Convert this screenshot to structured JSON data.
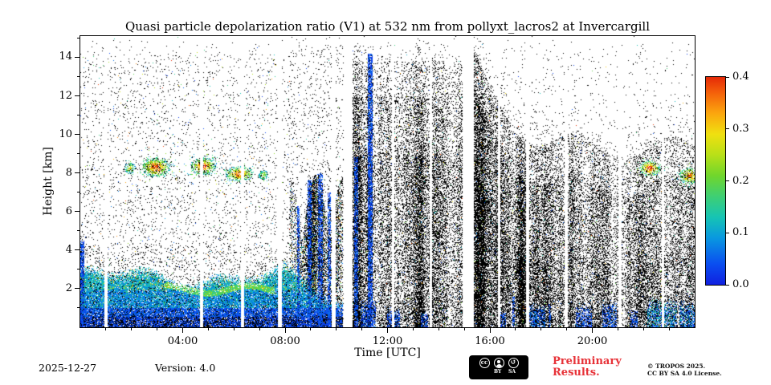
{
  "colors": {
    "background": "#ffffff",
    "axis": "#000000",
    "preliminary_red": "#e73137",
    "badge_bg": "#000000",
    "badge_fg": "#ffffff"
  },
  "chart_data": {
    "type": "heatmap",
    "title": "Quasi particle depolarization ratio (V1) at 532 nm from pollyxt_lacros2 at Invercargill",
    "xlabel": "Time [UTC]",
    "ylabel": "Height [km]",
    "value_field": "quasi particle depolarization ratio",
    "x_range_hours": [
      0,
      24
    ],
    "y_range_km": [
      0,
      15.1
    ],
    "x_major_ticks": [
      {
        "hour": 4,
        "label": "04:00"
      },
      {
        "hour": 8,
        "label": "08:00"
      },
      {
        "hour": 12,
        "label": "12:00"
      },
      {
        "hour": 16,
        "label": "16:00"
      },
      {
        "hour": 20,
        "label": "20:00"
      }
    ],
    "x_minor_tick_step_hours": 1,
    "y_major_ticks": [
      {
        "km": 2,
        "label": "2"
      },
      {
        "km": 4,
        "label": "4"
      },
      {
        "km": 6,
        "label": "6"
      },
      {
        "km": 8,
        "label": "8"
      },
      {
        "km": 10,
        "label": "10"
      },
      {
        "km": 12,
        "label": "12"
      },
      {
        "km": 14,
        "label": "14"
      }
    ],
    "y_minor_tick_step_km": 1,
    "colorbar": {
      "range": [
        0.0,
        0.4
      ],
      "ticks": [
        {
          "value": 0.0,
          "label": "0.0"
        },
        {
          "value": 0.1,
          "label": "0.1"
        },
        {
          "value": 0.2,
          "label": "0.2"
        },
        {
          "value": 0.3,
          "label": "0.3"
        },
        {
          "value": 0.4,
          "label": "0.4"
        }
      ],
      "colormap": "jet",
      "stops": [
        {
          "v": 0.0,
          "c": "#1020e0"
        },
        {
          "v": 0.04,
          "c": "#0a4ef0"
        },
        {
          "v": 0.09,
          "c": "#0998e0"
        },
        {
          "v": 0.13,
          "c": "#16c4b4"
        },
        {
          "v": 0.17,
          "c": "#3ecf74"
        },
        {
          "v": 0.21,
          "c": "#70d62c"
        },
        {
          "v": 0.25,
          "c": "#b8e018"
        },
        {
          "v": 0.29,
          "c": "#f0e010"
        },
        {
          "v": 0.33,
          "c": "#fba60e"
        },
        {
          "v": 0.37,
          "c": "#f4600a"
        },
        {
          "v": 0.4,
          "c": "#e52a08"
        }
      ]
    },
    "features": {
      "seed": 1337,
      "description": "Lidar quicklook: sparse dark speckle noise everywhere; blue-green boundary-layer aerosol below ~2.5 km until ~10:00 UTC; strongly depolarizing (orange-red) cirrus patches near 8 km at ~02:00-07:30 and ~21:50-24:00 UTC; dense black cloud/noise masses 10:40-14:55 and after 15:20 UTC; narrow blue liquid/precipitation columns; vertical white no-data gaps.",
      "data_gap_hours": [
        [
          0.95,
          1.07
        ],
        [
          4.68,
          4.8
        ],
        [
          6.28,
          6.4
        ],
        [
          7.73,
          7.87
        ],
        [
          9.82,
          9.97
        ],
        [
          10.28,
          10.62
        ],
        [
          12.18,
          12.26
        ],
        [
          13.66,
          13.75
        ],
        [
          14.92,
          15.38
        ],
        [
          16.3,
          16.4
        ],
        [
          17.42,
          17.54
        ],
        [
          18.92,
          19.04
        ],
        [
          21.02,
          21.14
        ],
        [
          22.7,
          22.82
        ]
      ],
      "aerosol_layer": {
        "h_start": 0,
        "h_end": 10.25,
        "mean_top_km": 2.55
      },
      "boundary_layer_patches": [
        [
          10.95,
          11.55,
          1.3,
          0.08
        ],
        [
          12.0,
          12.5,
          0.9,
          0.08
        ],
        [
          13.3,
          13.6,
          0.7,
          0.08
        ],
        [
          16.3,
          16.62,
          0.8,
          0.08
        ],
        [
          17.5,
          18.15,
          1.1,
          0.1
        ],
        [
          19.35,
          20.0,
          1.0,
          0.08
        ],
        [
          20.4,
          20.95,
          1.2,
          0.08
        ],
        [
          21.45,
          21.78,
          0.8,
          0.08
        ],
        [
          22.15,
          23.3,
          1.35,
          0.18
        ],
        [
          23.4,
          24.0,
          1.2,
          0.14
        ]
      ],
      "cirrus_patches": [
        [
          1.95,
          8.25,
          0.22,
          0.3,
          0.3
        ],
        [
          2.95,
          8.3,
          0.55,
          0.5,
          0.42
        ],
        [
          4.8,
          8.35,
          0.5,
          0.45,
          0.42
        ],
        [
          6.2,
          7.95,
          0.55,
          0.4,
          0.4
        ],
        [
          7.15,
          7.9,
          0.18,
          0.25,
          0.28
        ],
        [
          22.25,
          8.25,
          0.42,
          0.4,
          0.42
        ],
        [
          23.8,
          7.85,
          0.4,
          0.45,
          0.4
        ]
      ],
      "liquid_columns": [
        [
          0.08,
          0.07,
          4.5,
          0.7
        ],
        [
          8.52,
          0.06,
          6.3,
          0.6
        ],
        [
          8.95,
          0.07,
          7.6,
          0.6
        ],
        [
          9.38,
          0.08,
          8.0,
          0.55
        ],
        [
          9.72,
          0.06,
          7.0,
          0.55
        ],
        [
          10.78,
          0.07,
          8.8,
          0.6
        ],
        [
          11.32,
          0.09,
          14.2,
          0.7
        ],
        [
          16.92,
          0.05,
          1.6,
          0.55
        ],
        [
          18.35,
          0.05,
          1.2,
          0.5
        ]
      ],
      "dense_regions": {
        "middle_hours": [
          10.62,
          14.92
        ],
        "right_start_hour": 15.38,
        "streaky_tower_hours": [
          8.15,
          10.25
        ]
      }
    }
  },
  "footer": {
    "date": "2025-12-27",
    "version": "Version: 4.0",
    "preliminary_line1": "Preliminary",
    "preliminary_line2": "Results.",
    "copyright_line1": "© TROPOS 2025.",
    "copyright_line2": "CC BY SA 4.0 License."
  },
  "badge": {
    "cc_text": "cc",
    "by_label": "BY",
    "sa_label": "SA",
    "sa_symbol": "↺"
  }
}
